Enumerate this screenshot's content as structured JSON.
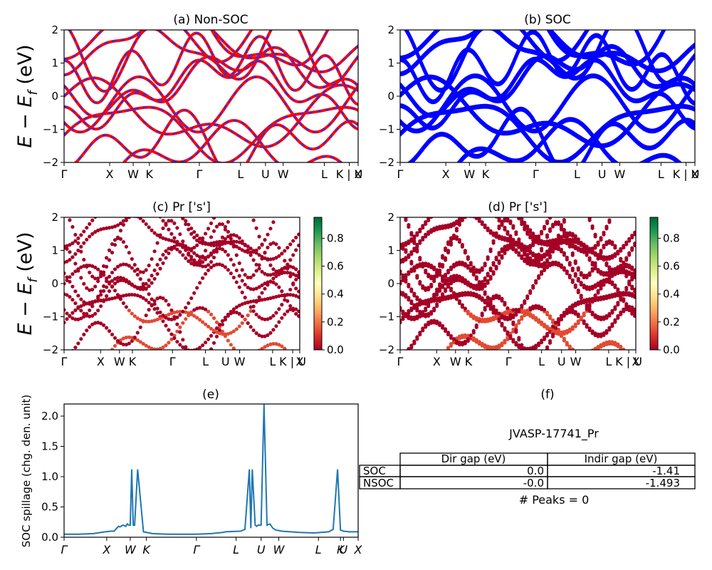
{
  "figure": {
    "ylabel_main": "E − E",
    "ylabel_sub": "f",
    "ylabel_unit": " (eV)",
    "kpath_labels": [
      "Γ",
      "X",
      "W",
      "K",
      "Γ",
      "L",
      "U",
      "W",
      "L",
      "K | U",
      "X"
    ],
    "spillage_kpath_labels": [
      "Γ",
      "X",
      "W",
      "K",
      "Γ",
      "L",
      "U",
      "W",
      "L",
      "K",
      "U",
      "X"
    ]
  },
  "colors": {
    "nonsoc_red": "#ff0000",
    "nonsoc_blue": "#2233ff",
    "soc_blue": "#0000ff",
    "spillage_line": "#1f77b4",
    "proj_low": "#a50026",
    "proj_mid": "#e34a33"
  },
  "chart_data": [
    {
      "id": "a",
      "type": "line",
      "title": "(a) Non-SOC",
      "ylim": [
        -2,
        2
      ],
      "yticks": [
        "2",
        "1",
        "0",
        "−1",
        "−2"
      ],
      "xticklabels": [
        "Γ",
        "X",
        "W",
        "K",
        "Γ",
        "L",
        "U",
        "W",
        "L",
        "K | U",
        "X"
      ],
      "legend": false
    },
    {
      "id": "b",
      "type": "line",
      "title": "(b) SOC",
      "ylim": [
        -2,
        2
      ],
      "yticks": [
        "2",
        "1",
        "0",
        "−1",
        "−2"
      ],
      "xticklabels": [
        "Γ",
        "X",
        "W",
        "K",
        "Γ",
        "L",
        "U",
        "W",
        "L",
        "K | U",
        "X"
      ],
      "legend": false
    },
    {
      "id": "c",
      "type": "scatter",
      "title": "(c)  Pr ['s']",
      "ylim": [
        -2,
        2
      ],
      "yticks": [
        "2",
        "1",
        "0",
        "−1",
        "−2"
      ],
      "xticklabels": [
        "Γ",
        "X",
        "W",
        "K",
        "Γ",
        "L",
        "U",
        "W",
        "L",
        "K | U",
        "X"
      ],
      "colorbar": {
        "ticks": [
          "0.0",
          "0.2",
          "0.4",
          "0.6",
          "0.8"
        ],
        "range": [
          0,
          0.95
        ],
        "colormap": "RdYlGn"
      }
    },
    {
      "id": "d",
      "type": "scatter",
      "title": "(d) Pr ['s']",
      "ylim": [
        -2,
        2
      ],
      "yticks": [
        "2",
        "1",
        "0",
        "−1",
        "−2"
      ],
      "xticklabels": [
        "Γ",
        "X",
        "W",
        "K",
        "Γ",
        "L",
        "U",
        "W",
        "L",
        "K | U",
        "X"
      ],
      "colorbar": {
        "ticks": [
          "0.0",
          "0.2",
          "0.4",
          "0.6",
          "0.8"
        ],
        "range": [
          0,
          0.95
        ],
        "colormap": "RdYlGn"
      }
    },
    {
      "id": "e",
      "type": "line",
      "title": "(e)",
      "ylabel": "SOC spillage (chg. den. unit)",
      "ylim": [
        0,
        2.2
      ],
      "yticks": [
        "0.0",
        "0.5",
        "1.0",
        "1.5",
        "2.0"
      ],
      "xticklabels": [
        "Γ",
        "X",
        "W",
        "K",
        "Γ",
        "L",
        "U",
        "W",
        "L",
        "K",
        "U",
        "X"
      ],
      "series": [
        {
          "x": [
            0,
            0.05,
            0.1,
            0.14,
            0.16,
            0.17,
            0.185,
            0.19,
            0.2,
            0.21,
            0.215,
            0.22,
            0.225,
            0.23,
            0.235,
            0.24,
            0.25,
            0.27,
            0.3,
            0.35,
            0.4,
            0.45,
            0.5,
            0.54,
            0.55,
            0.6,
            0.615,
            0.63,
            0.635,
            0.64,
            0.65,
            0.655,
            0.66,
            0.67,
            0.68,
            0.69,
            0.7,
            0.71,
            0.72,
            0.74,
            0.8,
            0.85,
            0.9,
            0.915,
            0.93,
            0.94,
            0.95,
            0.97,
            1.0
          ],
          "y": [
            0.05,
            0.05,
            0.06,
            0.09,
            0.1,
            0.1,
            0.18,
            0.17,
            0.2,
            0.18,
            0.22,
            0.2,
            0.2,
            1.12,
            0.2,
            0.2,
            1.12,
            0.09,
            0.06,
            0.05,
            0.05,
            0.05,
            0.06,
            0.08,
            0.09,
            0.1,
            0.13,
            1.12,
            0.15,
            1.12,
            0.2,
            0.18,
            0.2,
            0.2,
            2.2,
            0.2,
            0.22,
            0.15,
            0.12,
            0.1,
            0.08,
            0.07,
            0.09,
            0.13,
            1.12,
            0.12,
            0.1,
            0.09,
            0.09
          ]
        }
      ]
    }
  ],
  "panel_f": {
    "title": "(f)",
    "material_id": "JVASP-17741_Pr",
    "table": {
      "col_headers": [
        "Dir gap (eV)",
        "Indir gap (eV)"
      ],
      "rows": [
        {
          "label": "SOC",
          "dir": "0.0",
          "indir": "-1.41"
        },
        {
          "label": "NSOC",
          "dir": "-0.0",
          "indir": "-1.493"
        }
      ]
    },
    "peaks_text": "# Peaks = 0"
  }
}
